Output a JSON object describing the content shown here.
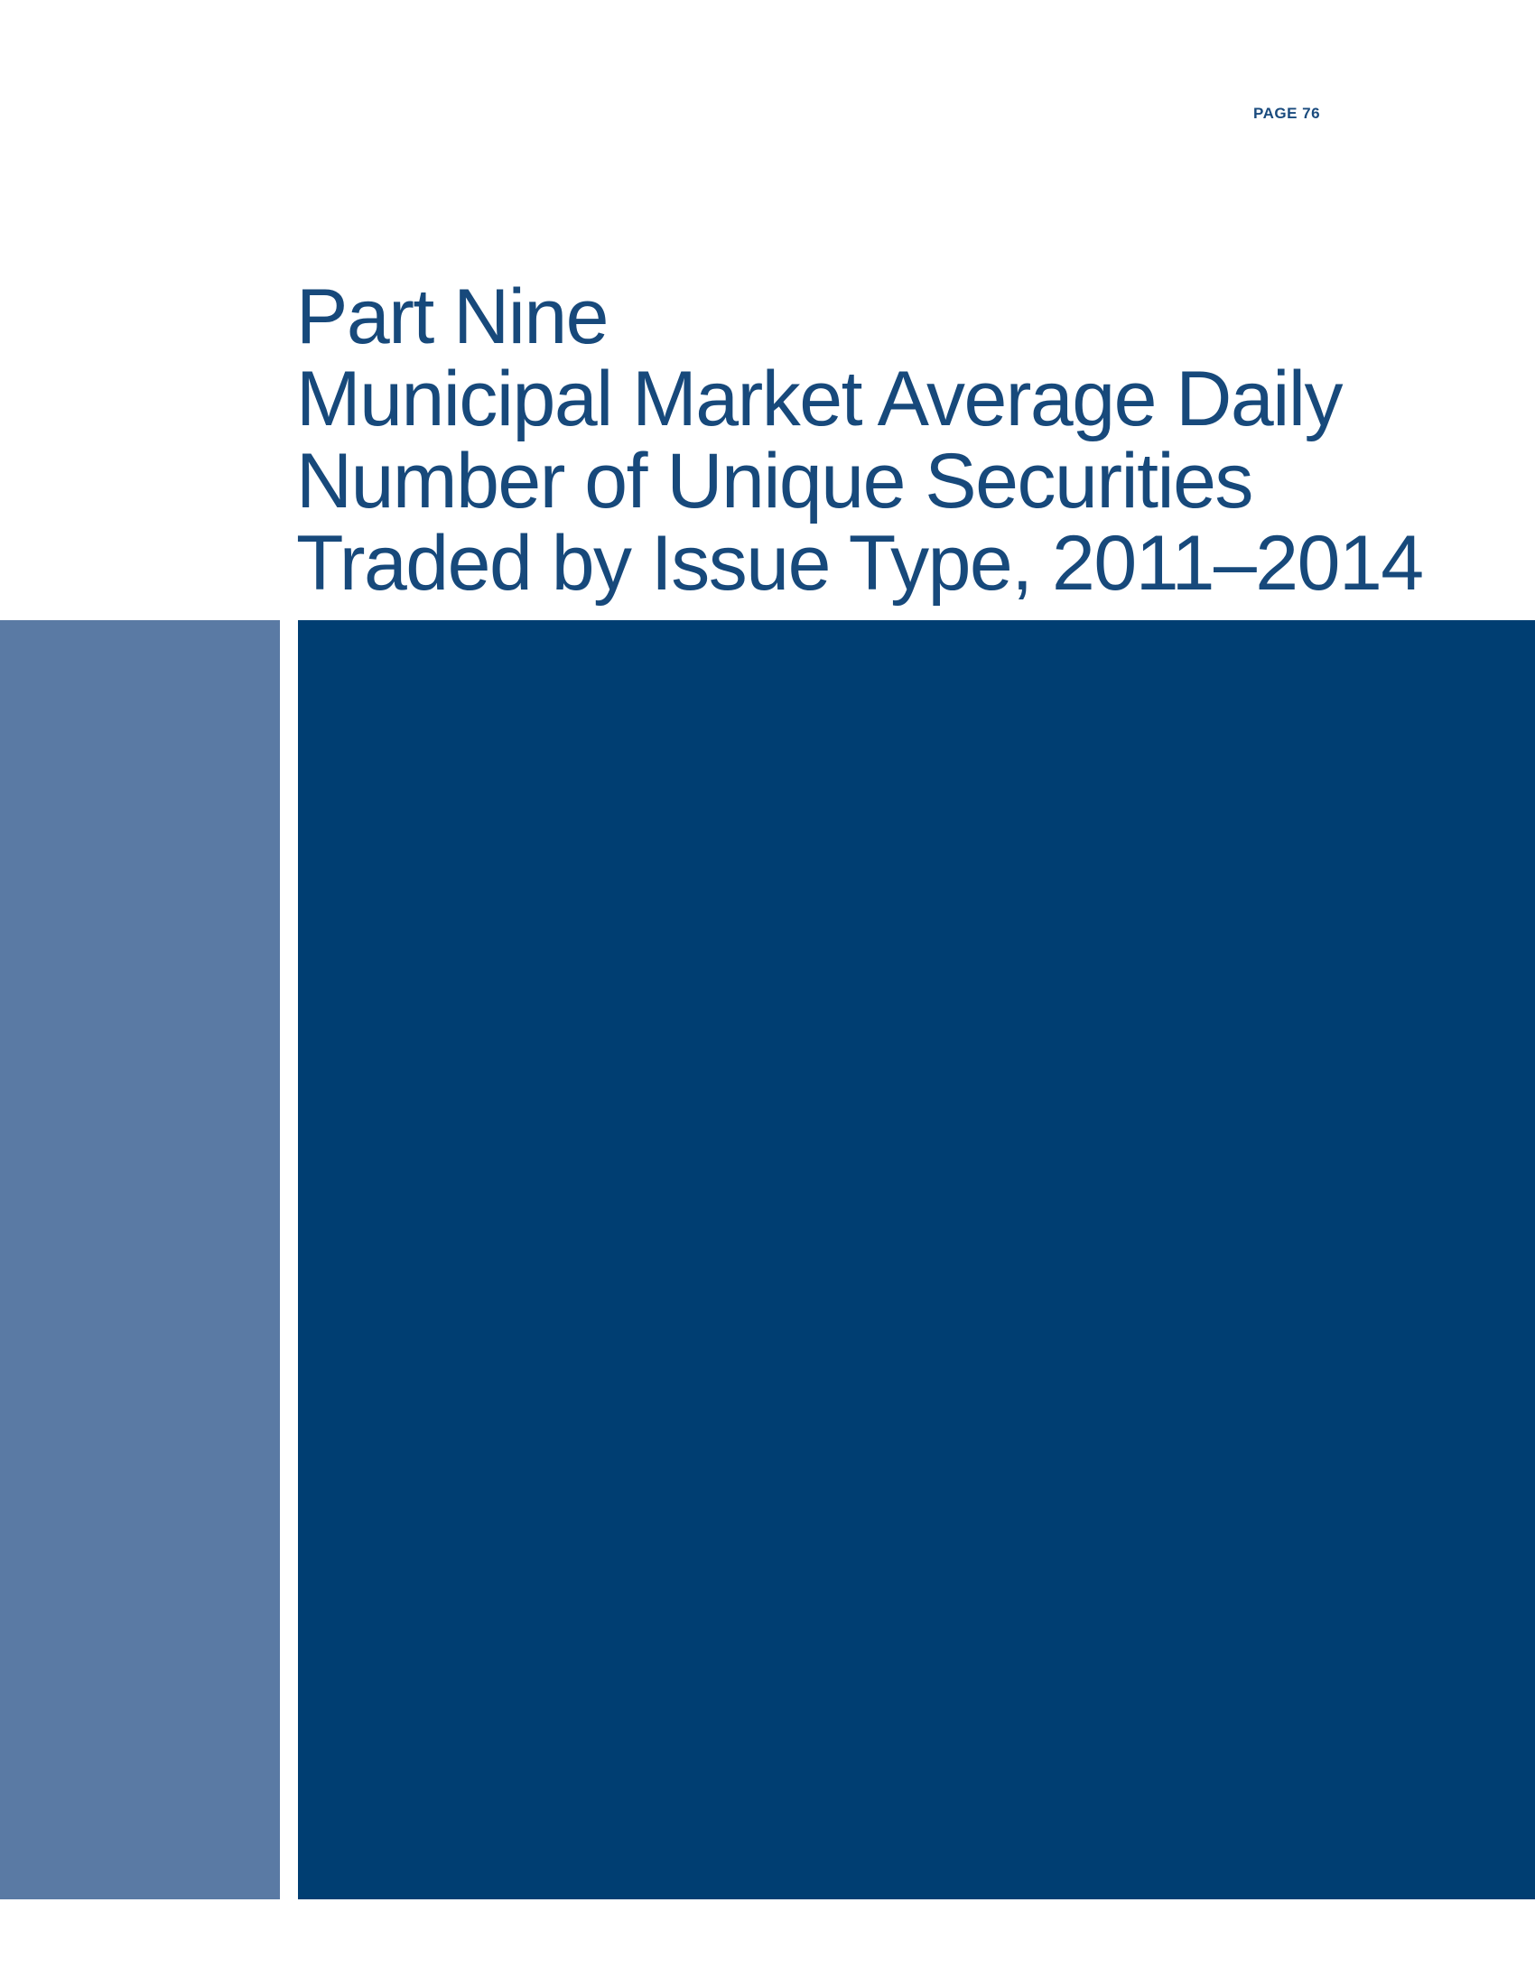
{
  "page": {
    "label": "PAGE 76"
  },
  "title": {
    "lines": [
      "Part Nine",
      "Municipal Market Average Daily",
      "Number of Unique Securities",
      "Traded by Issue Type, 2011–2014"
    ]
  },
  "colors": {
    "title_text": "#17497B",
    "page_label": "#1A4B7E",
    "sidebar_bar": "#5A7AA4",
    "content_panel": "#003E72",
    "background": "#FFFFFF"
  }
}
